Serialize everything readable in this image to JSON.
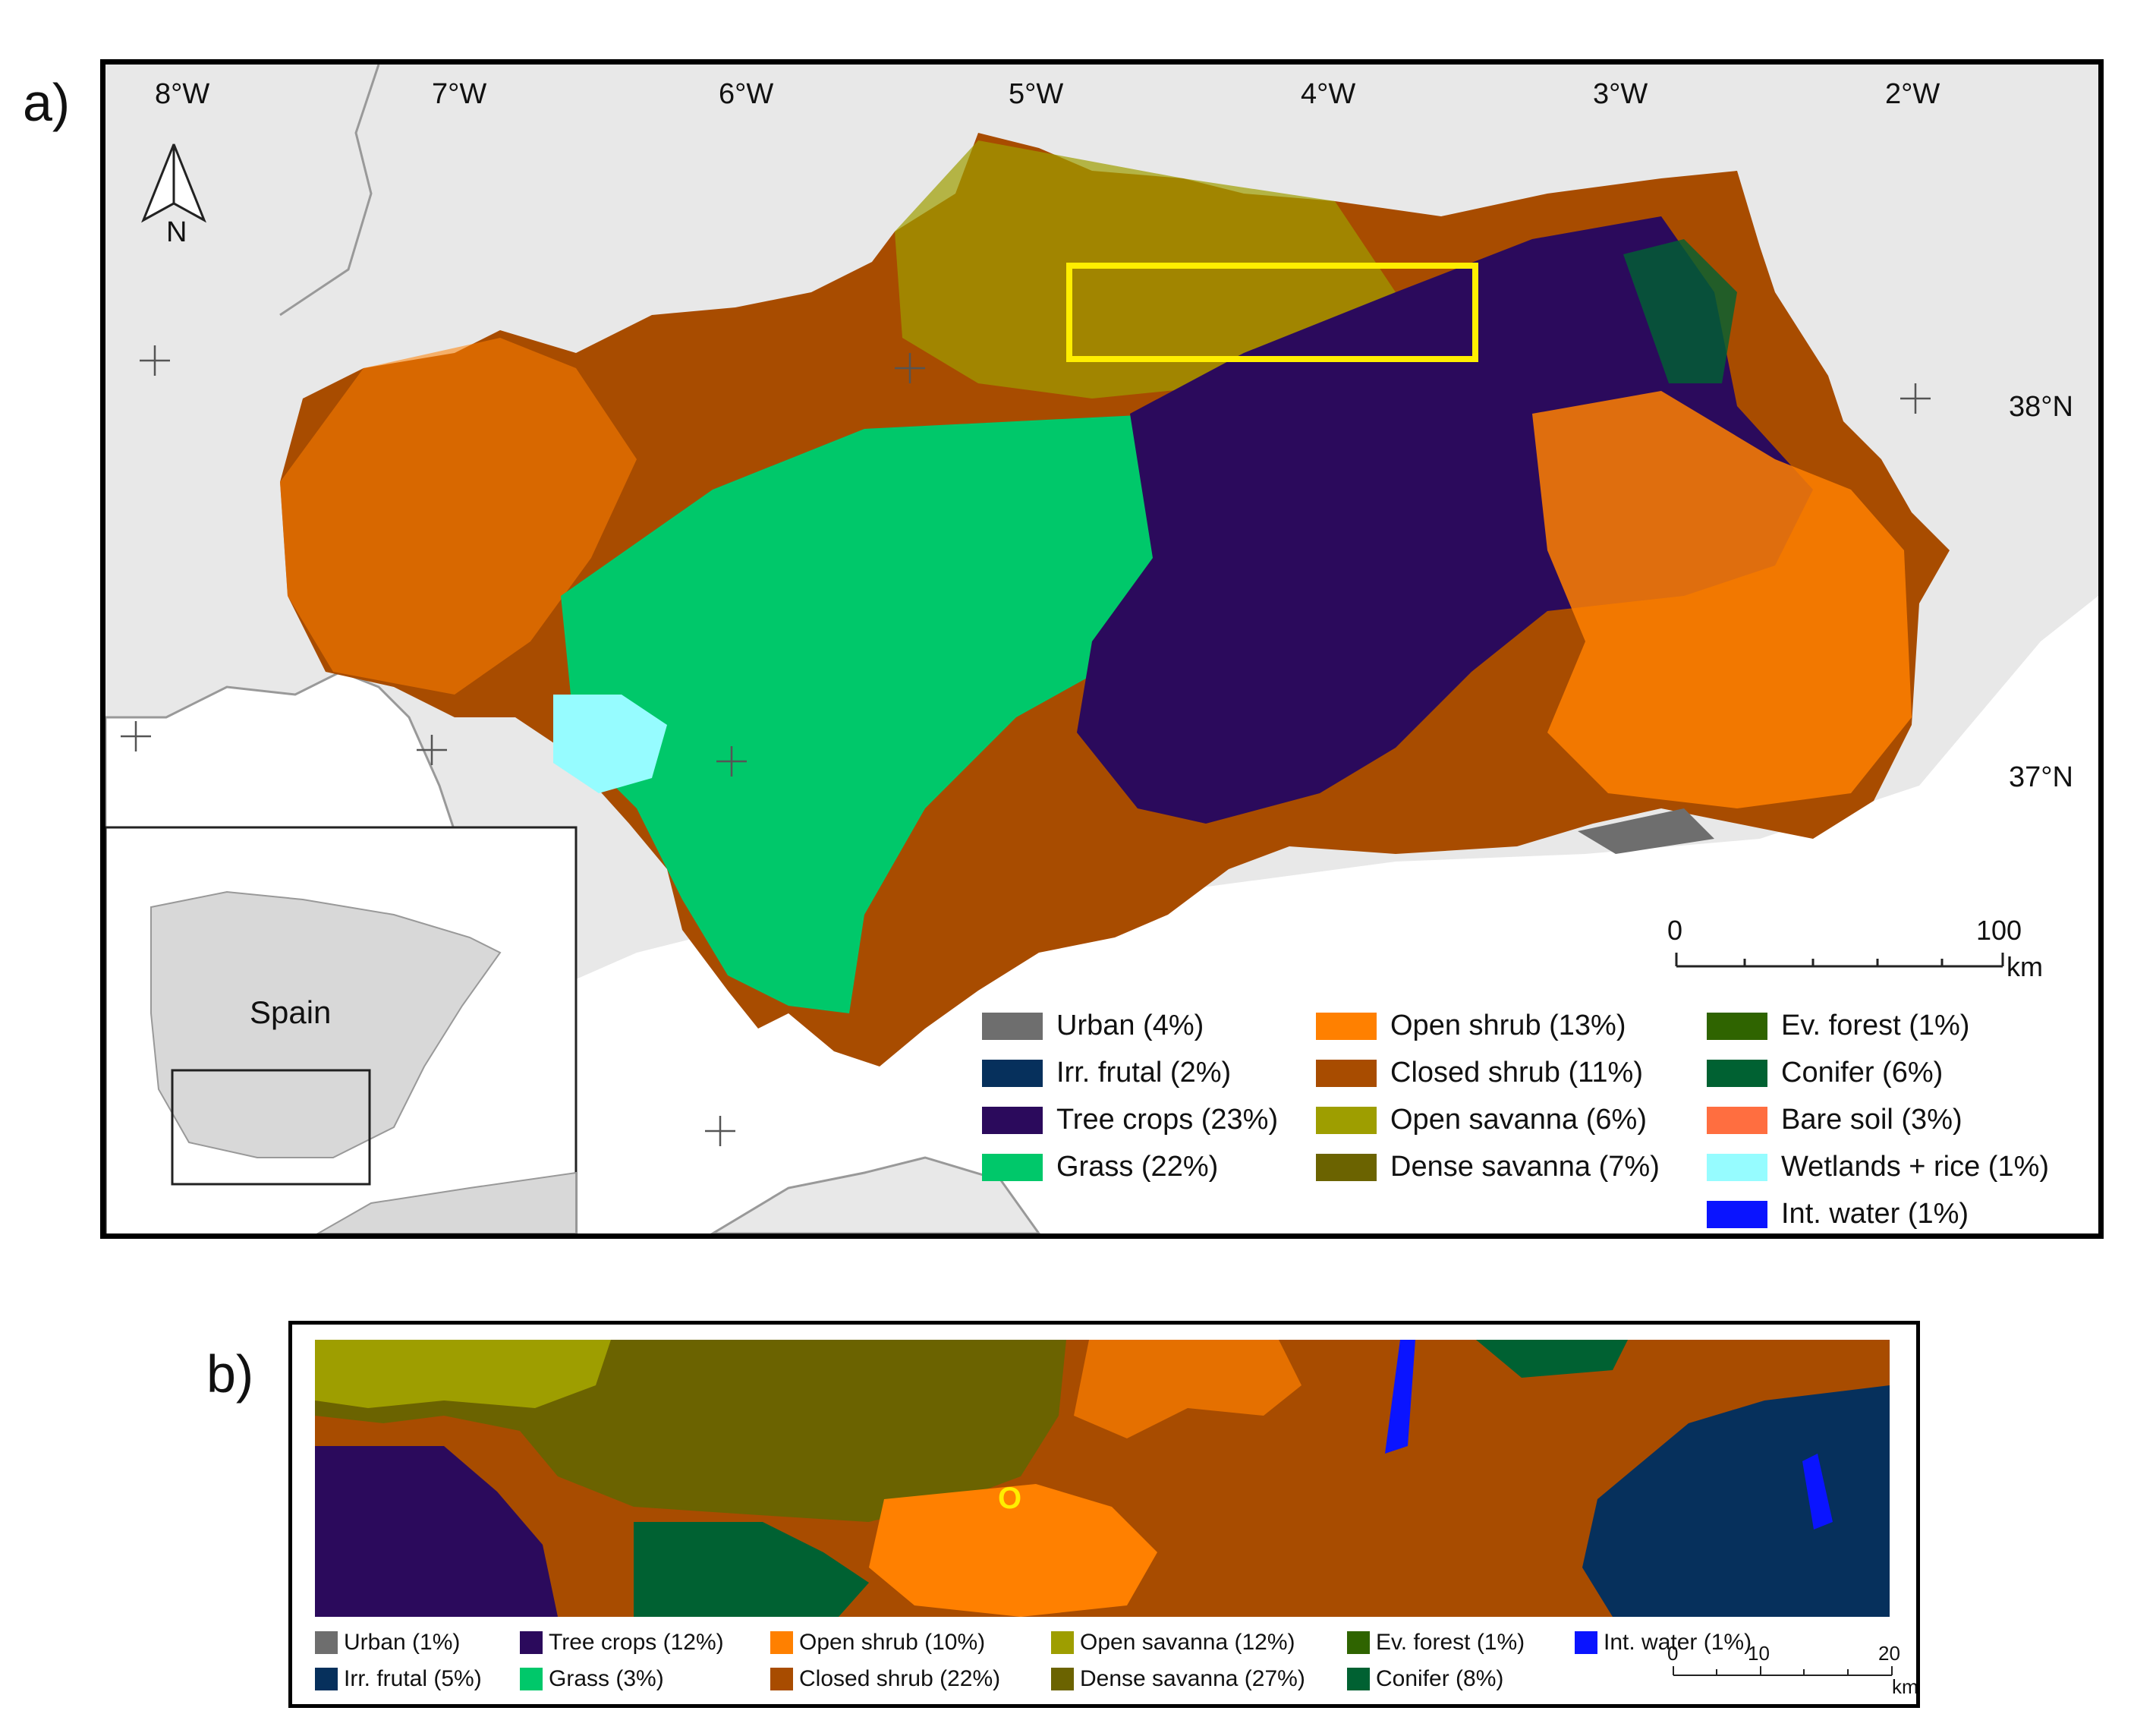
{
  "panel_a": {
    "label": "a)",
    "lon_labels": [
      "8°W",
      "7°W",
      "6°W",
      "5°W",
      "4°W",
      "3°W",
      "2°W"
    ],
    "lat_labels": [
      "38°N",
      "37°N"
    ],
    "north_label": "N",
    "inset_label": "Spain",
    "scale": {
      "start": "0",
      "end": "100",
      "unit": "km"
    },
    "legend": [
      {
        "name": "Urban (4%)",
        "color": "#6e6e6e"
      },
      {
        "name": "Irr. frutal (2%)",
        "color": "#06305c"
      },
      {
        "name": "Tree crops (23%)",
        "color": "#2b0a5c"
      },
      {
        "name": "Grass (22%)",
        "color": "#00c86a"
      },
      {
        "name": "Open shrub (13%)",
        "color": "#ff8000"
      },
      {
        "name": "Closed shrub (11%)",
        "color": "#a84c00"
      },
      {
        "name": "Open savanna (6%)",
        "color": "#9e9e00"
      },
      {
        "name": "Dense savanna (7%)",
        "color": "#6b6300"
      },
      {
        "name": "Ev. forest (1%)",
        "color": "#2f6400"
      },
      {
        "name": "Conifer (6%)",
        "color": "#006132"
      },
      {
        "name": "Bare soil (3%)",
        "color": "#ff6e40"
      },
      {
        "name": "Wetlands + rice (1%)",
        "color": "#96fcff"
      },
      {
        "name": "Int. water (1%)",
        "color": "#0a14ff"
      }
    ]
  },
  "panel_b": {
    "label": "b)",
    "marker": "O",
    "scale": {
      "t0": "0",
      "t1": "10",
      "t2": "20",
      "unit": "km"
    },
    "legend": [
      {
        "name": "Urban (1%)",
        "color": "#6e6e6e"
      },
      {
        "name": "Tree crops (12%)",
        "color": "#2b0a5c"
      },
      {
        "name": "Open shrub (10%)",
        "color": "#ff8000"
      },
      {
        "name": "Open savanna (12%)",
        "color": "#9e9e00"
      },
      {
        "name": "Ev. forest (1%)",
        "color": "#2f6400"
      },
      {
        "name": "Int. water (1%)",
        "color": "#0a14ff"
      },
      {
        "name": "Irr. frutal (5%)",
        "color": "#06305c"
      },
      {
        "name": "Grass (3%)",
        "color": "#00c86a"
      },
      {
        "name": "Closed shrub (22%)",
        "color": "#a84c00"
      },
      {
        "name": "Dense savanna (27%)",
        "color": "#6b6300"
      },
      {
        "name": "Conifer (8%)",
        "color": "#006132"
      }
    ]
  }
}
